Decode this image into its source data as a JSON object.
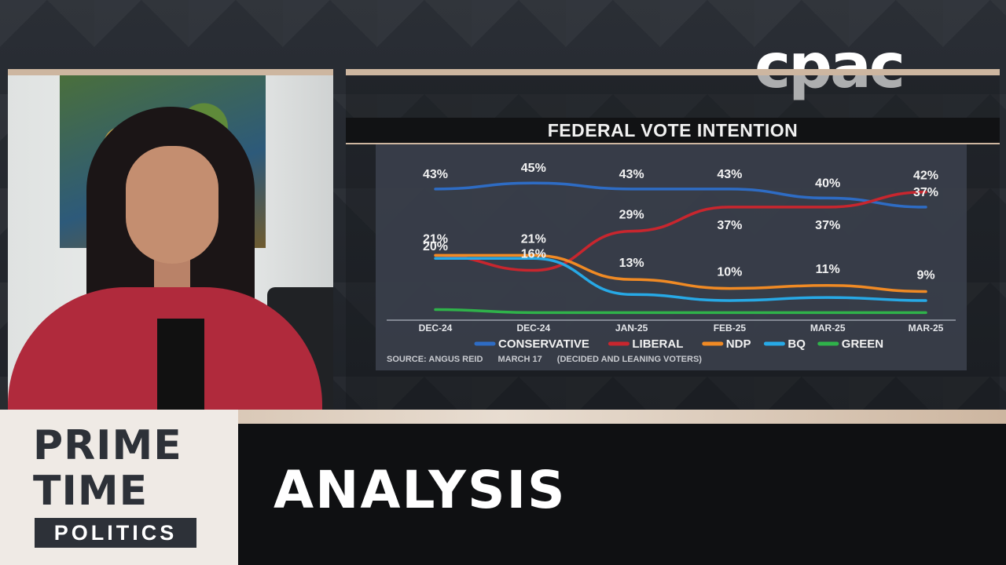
{
  "logo": {
    "text": "cpac"
  },
  "program": {
    "line1": "PRIME",
    "line2": "TIME",
    "line3": "POLITICS"
  },
  "segment": {
    "title": "ANALYSIS"
  },
  "source": {
    "label": "SOURCE: ANGUS REID",
    "date": "MARCH 17",
    "note": "(DECIDED AND LEANING VOTERS)"
  },
  "chart_data": {
    "type": "line",
    "title": "FEDERAL VOTE INTENTION",
    "categories": [
      "DEC-24",
      "DEC-24",
      "JAN-25",
      "FEB-25",
      "MAR-25",
      "MAR-25"
    ],
    "ylim": [
      0,
      50
    ],
    "grid": false,
    "legend": "bottom",
    "series": [
      {
        "name": "CONSERVATIVE",
        "color": "#2e6cc4",
        "values": [
          43,
          45,
          43,
          43,
          40,
          37
        ],
        "labels": [
          "43%",
          "45%",
          "43%",
          "43%",
          "40%",
          "37%"
        ]
      },
      {
        "name": "LIBERAL",
        "color": "#c8262e",
        "values": [
          21,
          16,
          29,
          37,
          37,
          42
        ],
        "labels": [
          "",
          "16%",
          "29%",
          "37%",
          "37%",
          "42%"
        ]
      },
      {
        "name": "NDP",
        "color": "#f08a24",
        "values": [
          21,
          21,
          13,
          10,
          11,
          9
        ],
        "labels": [
          "21%",
          "21%",
          "13%",
          "10%",
          "11%",
          "9%"
        ]
      },
      {
        "name": "BQ",
        "color": "#27a9e6",
        "values": [
          20,
          20,
          8,
          6,
          7,
          6
        ],
        "labels": [
          "20%",
          "",
          "",
          "",
          "",
          ""
        ]
      },
      {
        "name": "GREEN",
        "color": "#2fb24a",
        "values": [
          3,
          2,
          2,
          2,
          2,
          2
        ],
        "labels": [
          "",
          "",
          "",
          "",
          "",
          ""
        ]
      }
    ]
  }
}
